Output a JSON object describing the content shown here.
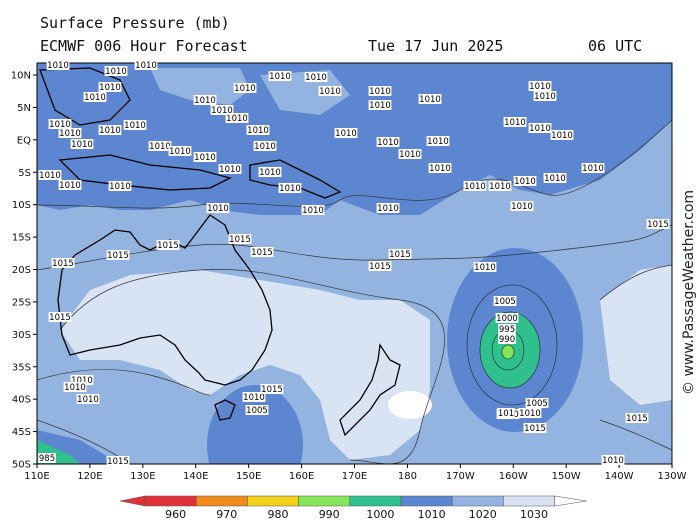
{
  "header": {
    "title": "Surface Pressure (mb)",
    "model": "ECMWF 006 Hour Forecast",
    "date": "Tue 17 Jun 2025",
    "time": "06 UTC"
  },
  "watermark": "© www.PassageWeather.com",
  "axes": {
    "lat_labels": [
      "10N",
      "5N",
      "EQ",
      "5S",
      "10S",
      "15S",
      "20S",
      "25S",
      "30S",
      "35S",
      "40S",
      "45S",
      "50S"
    ],
    "lon_labels": [
      "110E",
      "120E",
      "130E",
      "140E",
      "150E",
      "160E",
      "170E",
      "180",
      "170W",
      "160W",
      "150W",
      "140W",
      "130W"
    ]
  },
  "colorbar": {
    "labels": [
      "960",
      "970",
      "980",
      "990",
      "1000",
      "1010",
      "1020",
      "1030"
    ],
    "colors": [
      "#e0303a",
      "#f08a18",
      "#f2d21a",
      "#86e65a",
      "#2fc08e",
      "#5c86cf",
      "#93b3e0",
      "#d8e4f4"
    ]
  },
  "isobars": [
    {
      "v": "1010",
      "key": "a"
    },
    {
      "v": "1015",
      "key": "b"
    },
    {
      "v": "1005",
      "key": "c"
    },
    {
      "v": "1000",
      "key": "d"
    },
    {
      "v": "995",
      "key": "e"
    },
    {
      "v": "990",
      "key": "f"
    },
    {
      "v": "101",
      "key": "g"
    },
    {
      "v": "985",
      "key": "h"
    }
  ],
  "colors": {
    "c1000_1010": "#5c86cf",
    "c1010_1020": "#93b3e0",
    "c1020_1030": "#d8e4f4",
    "c990": "#2fc08e",
    "c980": "#86e65a",
    "land": "#000000"
  }
}
